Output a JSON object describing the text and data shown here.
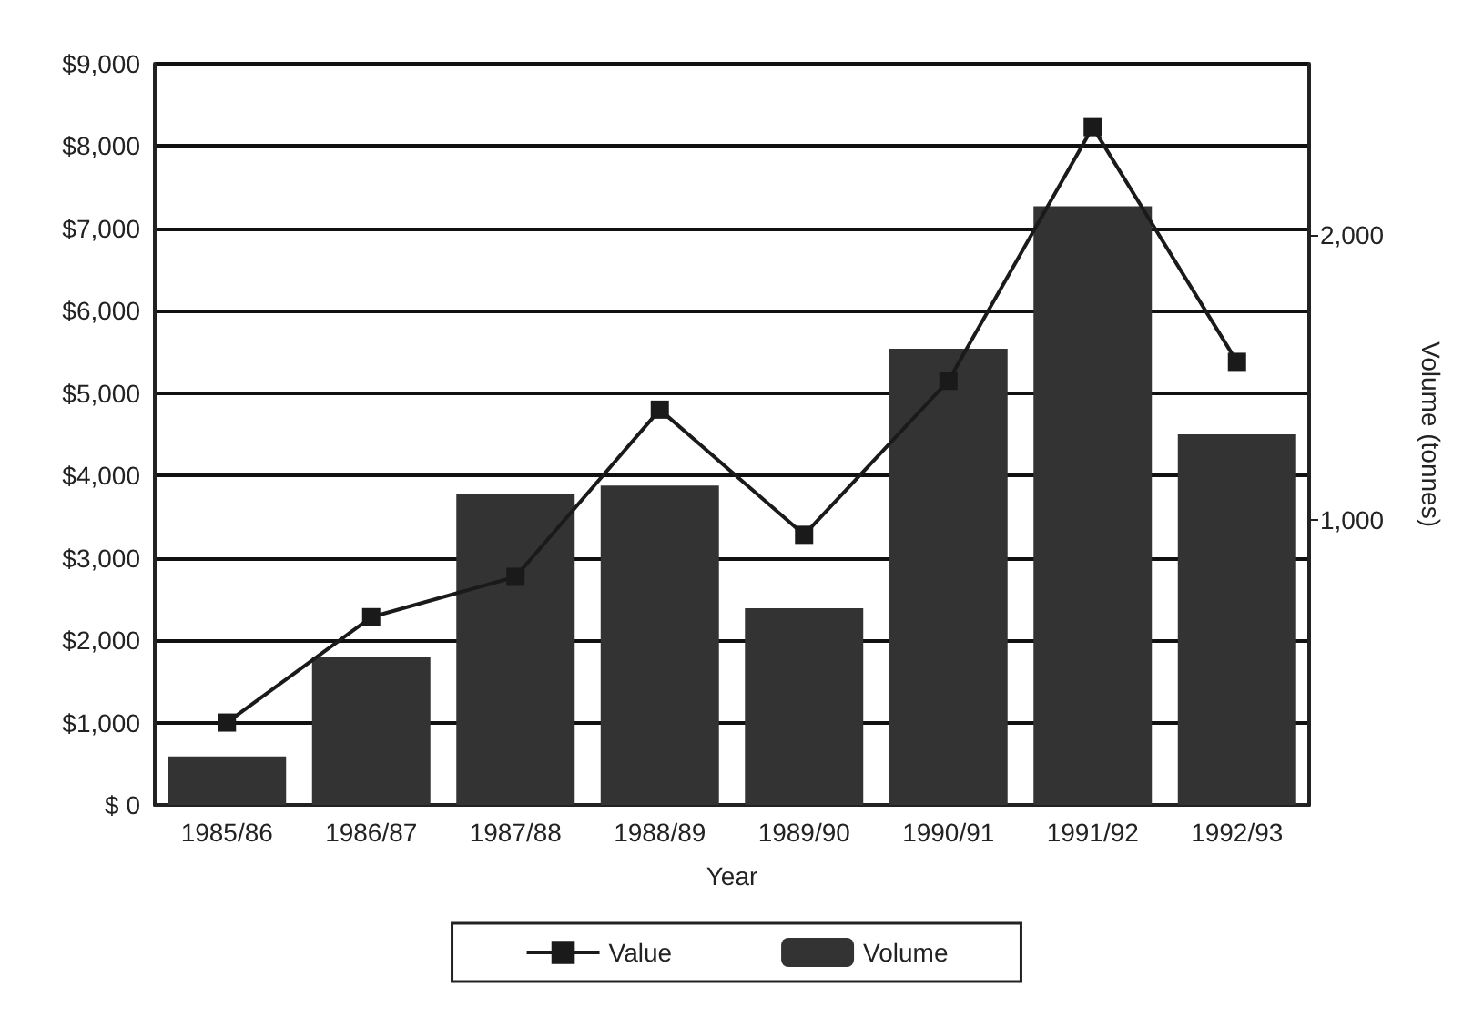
{
  "chart_data": {
    "type": "bar",
    "xlabel": "Year",
    "y2label": "Volume (tonnes)",
    "categories": [
      "1985/86",
      "1986/87",
      "1987/88",
      "1988/89",
      "1989/90",
      "1990/91",
      "1991/92",
      "1992/93"
    ],
    "series": [
      {
        "name": "Value",
        "type": "line",
        "color": "#1a1a1a",
        "marker": "square",
        "values": [
          1000,
          2280,
          2770,
          4800,
          3280,
          5150,
          8230,
          5380
        ]
      },
      {
        "name": "Volume",
        "axis": "y2",
        "color": "#333333",
        "values": [
          170,
          520,
          1090,
          1120,
          690,
          1600,
          2100,
          1300
        ]
      }
    ],
    "ylim": [
      0,
      9000
    ],
    "yticks": [
      {
        "value": 0,
        "label": "$ 0"
      },
      {
        "value": 1000,
        "label": "$1,000"
      },
      {
        "value": 2000,
        "label": "$2,000"
      },
      {
        "value": 3000,
        "label": "$3,000"
      },
      {
        "value": 4000,
        "label": "$4,000"
      },
      {
        "value": 5000,
        "label": "$5,000"
      },
      {
        "value": 6000,
        "label": "$6,000"
      },
      {
        "value": 7000,
        "label": "$7,000"
      },
      {
        "value": 8000,
        "label": "$8,000"
      },
      {
        "value": 9000,
        "label": "$9,000"
      }
    ],
    "y2lim": [
      0,
      2600
    ],
    "y2ticks": [
      {
        "value": 1000,
        "label": "1,000"
      },
      {
        "value": 2000,
        "label": "2,000"
      }
    ],
    "grid": "y",
    "legend": "bottom"
  }
}
